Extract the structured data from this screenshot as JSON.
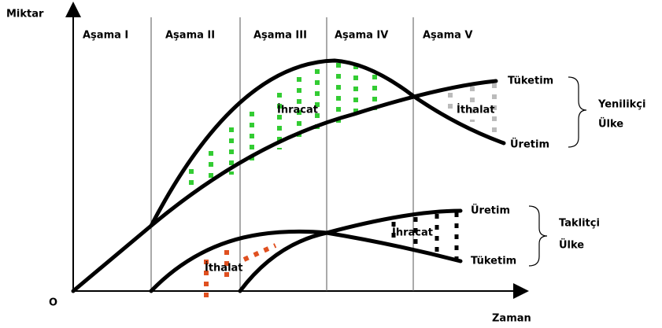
{
  "axes": {
    "y_label": "Miktar",
    "x_label": "Zaman",
    "origin": "O"
  },
  "stages": [
    "Aşama I",
    "Aşama II",
    "Aşama III",
    "Aşama IV",
    "Aşama V"
  ],
  "innovator": {
    "consumption": "Tüketim",
    "production": "Üretim",
    "export": "İhracat",
    "import": "İthalat",
    "country": [
      "Yenilikçi",
      "Ülke"
    ]
  },
  "imitator": {
    "production": "Üretim",
    "consumption": "Tüketim",
    "export": "İhracat",
    "import": "İthalat",
    "country": [
      "Taklitçi",
      "Ülke"
    ]
  }
}
